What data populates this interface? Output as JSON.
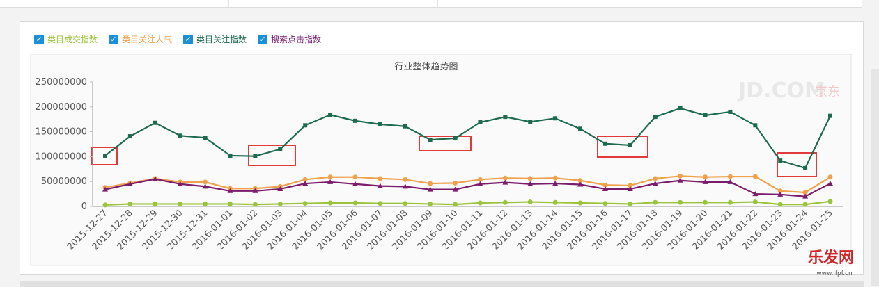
{
  "chart_data": {
    "type": "line",
    "title": "行业整体趋势图",
    "categories": [
      "2015-12-27",
      "2015-12-28",
      "2015-12-29",
      "2015-12-30",
      "2015-12-31",
      "2016-01-01",
      "2016-01-02",
      "2016-01-03",
      "2016-01-04",
      "2016-01-05",
      "2016-01-06",
      "2016-01-07",
      "2016-01-08",
      "2016-01-09",
      "2016-01-10",
      "2016-01-11",
      "2016-01-12",
      "2016-01-13",
      "2016-01-14",
      "2016-01-15",
      "2016-01-16",
      "2016-01-17",
      "2016-01-18",
      "2016-01-19",
      "2016-01-20",
      "2016-01-21",
      "2016-01-22",
      "2016-01-23",
      "2016-01-24",
      "2016-01-25"
    ],
    "series": [
      {
        "name": "类目成交指数",
        "color": "#9bc43c",
        "marker": "circle",
        "values": [
          3000000,
          5000000,
          5000000,
          5000000,
          5000000,
          5000000,
          4000000,
          5000000,
          6000000,
          7000000,
          7000000,
          6000000,
          6000000,
          5000000,
          4000000,
          7000000,
          8000000,
          9000000,
          8000000,
          7000000,
          6000000,
          5000000,
          8000000,
          8000000,
          8000000,
          8000000,
          9000000,
          4000000,
          4000000,
          10000000
        ]
      },
      {
        "name": "类目关注人气",
        "color": "#f0a14c",
        "marker": "circle",
        "values": [
          38000000,
          47000000,
          56000000,
          49000000,
          49000000,
          36000000,
          36000000,
          40000000,
          54000000,
          59000000,
          59000000,
          56000000,
          54000000,
          46000000,
          47000000,
          54000000,
          57000000,
          56000000,
          57000000,
          52000000,
          43000000,
          42000000,
          56000000,
          61000000,
          59000000,
          60000000,
          60000000,
          31000000,
          28000000,
          59000000
        ]
      },
      {
        "name": "类目关注指数",
        "color": "#1d6a4e",
        "marker": "square",
        "values": [
          102000000,
          141000000,
          168000000,
          142000000,
          138000000,
          102000000,
          101000000,
          115000000,
          163000000,
          184000000,
          172000000,
          165000000,
          161000000,
          134000000,
          137000000,
          169000000,
          180000000,
          170000000,
          177000000,
          156000000,
          126000000,
          123000000,
          180000000,
          197000000,
          183000000,
          190000000,
          163000000,
          92000000,
          77000000,
          182000000
        ]
      },
      {
        "name": "搜索点击指数",
        "color": "#7a1b6c",
        "marker": "triangle",
        "values": [
          34000000,
          45000000,
          55000000,
          45000000,
          40000000,
          31000000,
          31000000,
          35000000,
          46000000,
          49000000,
          45000000,
          41000000,
          40000000,
          34000000,
          34000000,
          45000000,
          48000000,
          45000000,
          46000000,
          44000000,
          35000000,
          35000000,
          46000000,
          52000000,
          49000000,
          49000000,
          25000000,
          24000000,
          20000000,
          46000000
        ]
      }
    ],
    "ylim": [
      0,
      250000000
    ],
    "yticks": [
      0,
      50000000,
      100000000,
      150000000,
      200000000,
      250000000
    ],
    "grid": false
  },
  "watermarks": {
    "jd": "JD.COM",
    "jd_cn": "京东",
    "site": "乐发网",
    "url": "www.lfpf.cn"
  }
}
